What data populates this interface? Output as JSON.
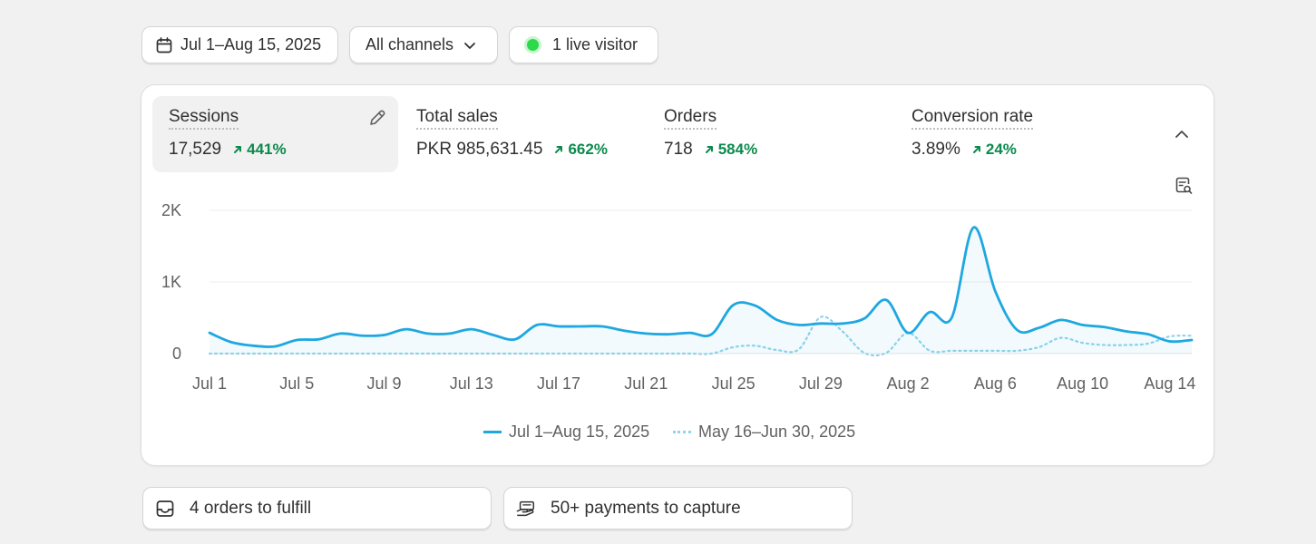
{
  "filters": {
    "date_range": "Jul 1–Aug 15, 2025",
    "channel": "All channels",
    "live_visitors": "1 live visitor"
  },
  "metrics": [
    {
      "label": "Sessions",
      "value": "17,529",
      "delta": "441%",
      "active": true
    },
    {
      "label": "Total sales",
      "value": "PKR 985,631.45",
      "delta": "662%",
      "active": false
    },
    {
      "label": "Orders",
      "value": "718",
      "delta": "584%",
      "active": false
    },
    {
      "label": "Conversion rate",
      "value": "3.89%",
      "delta": "24%",
      "active": false
    }
  ],
  "chart_data": {
    "type": "line",
    "y_ticks": [
      "0",
      "1K",
      "2K"
    ],
    "ylim": [
      0,
      2000
    ],
    "x_tick_labels": [
      "Jul 1",
      "Jul 5",
      "Jul 9",
      "Jul 13",
      "Jul 17",
      "Jul 21",
      "Jul 25",
      "Jul 29",
      "Aug 2",
      "Aug 6",
      "Aug 10",
      "Aug 14"
    ],
    "x_tick_days": [
      0,
      4,
      8,
      12,
      16,
      20,
      24,
      28,
      32,
      36,
      40,
      44
    ],
    "legend_position": "bottom",
    "series": [
      {
        "name": "Jul 1–Aug 15, 2025",
        "color": "#1ea7e0",
        "style": "solid",
        "values": [
          290,
          160,
          110,
          100,
          190,
          200,
          280,
          250,
          260,
          340,
          280,
          280,
          340,
          260,
          200,
          400,
          380,
          380,
          380,
          320,
          280,
          270,
          290,
          270,
          680,
          670,
          470,
          400,
          420,
          420,
          490,
          750,
          290,
          580,
          500,
          1760,
          870,
          330,
          360,
          470,
          400,
          370,
          310,
          270,
          170,
          190
        ]
      },
      {
        "name": "May 16–Jun 30, 2025",
        "color": "#8fd4ec",
        "style": "dotted",
        "values": [
          0,
          0,
          0,
          0,
          0,
          0,
          0,
          0,
          0,
          0,
          0,
          0,
          0,
          0,
          0,
          0,
          0,
          0,
          0,
          0,
          0,
          0,
          0,
          0,
          90,
          110,
          50,
          60,
          510,
          310,
          10,
          10,
          290,
          40,
          40,
          40,
          40,
          40,
          90,
          220,
          150,
          120,
          120,
          140,
          240,
          250
        ]
      }
    ]
  },
  "tasks": {
    "fulfill": "4 orders to fulfill",
    "capture": "50+ payments to capture"
  },
  "colors": {
    "positive": "#0c8a4e",
    "live_dot": "#2bd94a",
    "primary_line": "#1ea7e0"
  }
}
